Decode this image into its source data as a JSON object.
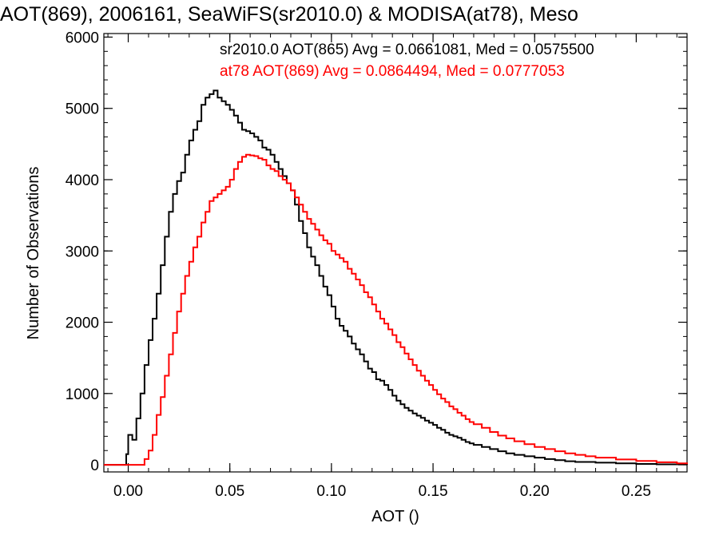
{
  "chart_data": {
    "type": "histogram",
    "title": "AOT(869), 2006161, SeaWiFS(sr2010.0) & MODISA(at78), Meso",
    "xlabel": "AOT ()",
    "ylabel": "Number of Observations",
    "xlim": [
      -0.012,
      0.275
    ],
    "ylim": [
      -100,
      6050
    ],
    "xticks": [
      0.0,
      0.05,
      0.1,
      0.15,
      0.2,
      0.25
    ],
    "xtick_labels": [
      "0.00",
      "0.05",
      "0.10",
      "0.15",
      "0.20",
      "0.25"
    ],
    "yticks": [
      0,
      1000,
      2000,
      3000,
      4000,
      5000,
      6000
    ],
    "ytick_labels": [
      "0",
      "1000",
      "2000",
      "3000",
      "4000",
      "5000",
      "6000"
    ],
    "series": [
      {
        "name": "sr2010.0 AOT(865)",
        "color": "#000000",
        "points": [
          [
            -0.012,
            0
          ],
          [
            -0.002,
            0
          ],
          [
            -0.001,
            150
          ],
          [
            0.0,
            420
          ],
          [
            0.002,
            350
          ],
          [
            0.004,
            650
          ],
          [
            0.006,
            1000
          ],
          [
            0.008,
            1400
          ],
          [
            0.01,
            1750
          ],
          [
            0.012,
            2050
          ],
          [
            0.014,
            2400
          ],
          [
            0.016,
            2800
          ],
          [
            0.018,
            3200
          ],
          [
            0.02,
            3550
          ],
          [
            0.022,
            3800
          ],
          [
            0.024,
            3980
          ],
          [
            0.026,
            4100
          ],
          [
            0.028,
            4350
          ],
          [
            0.03,
            4550
          ],
          [
            0.032,
            4700
          ],
          [
            0.034,
            4820
          ],
          [
            0.036,
            5050
          ],
          [
            0.038,
            5150
          ],
          [
            0.04,
            5200
          ],
          [
            0.042,
            5250
          ],
          [
            0.044,
            5150
          ],
          [
            0.046,
            5100
          ],
          [
            0.048,
            5050
          ],
          [
            0.05,
            4980
          ],
          [
            0.052,
            4900
          ],
          [
            0.054,
            4800
          ],
          [
            0.056,
            4700
          ],
          [
            0.058,
            4680
          ],
          [
            0.06,
            4650
          ],
          [
            0.062,
            4600
          ],
          [
            0.064,
            4550
          ],
          [
            0.066,
            4450
          ],
          [
            0.068,
            4420
          ],
          [
            0.07,
            4350
          ],
          [
            0.072,
            4250
          ],
          [
            0.074,
            4150
          ],
          [
            0.076,
            4050
          ],
          [
            0.078,
            3950
          ],
          [
            0.08,
            3850
          ],
          [
            0.082,
            3650
          ],
          [
            0.084,
            3420
          ],
          [
            0.086,
            3250
          ],
          [
            0.088,
            3050
          ],
          [
            0.09,
            2920
          ],
          [
            0.092,
            2800
          ],
          [
            0.094,
            2650
          ],
          [
            0.096,
            2500
          ],
          [
            0.098,
            2380
          ],
          [
            0.1,
            2220
          ],
          [
            0.102,
            2050
          ],
          [
            0.104,
            1950
          ],
          [
            0.106,
            1880
          ],
          [
            0.108,
            1800
          ],
          [
            0.11,
            1700
          ],
          [
            0.112,
            1620
          ],
          [
            0.114,
            1550
          ],
          [
            0.116,
            1450
          ],
          [
            0.118,
            1350
          ],
          [
            0.12,
            1300
          ],
          [
            0.122,
            1200
          ],
          [
            0.124,
            1180
          ],
          [
            0.126,
            1120
          ],
          [
            0.128,
            1050
          ],
          [
            0.13,
            970
          ],
          [
            0.132,
            900
          ],
          [
            0.134,
            850
          ],
          [
            0.136,
            800
          ],
          [
            0.138,
            760
          ],
          [
            0.14,
            720
          ],
          [
            0.142,
            690
          ],
          [
            0.144,
            660
          ],
          [
            0.146,
            620
          ],
          [
            0.148,
            590
          ],
          [
            0.15,
            560
          ],
          [
            0.152,
            520
          ],
          [
            0.154,
            490
          ],
          [
            0.156,
            450
          ],
          [
            0.158,
            420
          ],
          [
            0.16,
            400
          ],
          [
            0.162,
            380
          ],
          [
            0.164,
            350
          ],
          [
            0.166,
            320
          ],
          [
            0.168,
            300
          ],
          [
            0.17,
            280
          ],
          [
            0.174,
            250
          ],
          [
            0.178,
            220
          ],
          [
            0.182,
            190
          ],
          [
            0.186,
            160
          ],
          [
            0.19,
            140
          ],
          [
            0.195,
            120
          ],
          [
            0.2,
            100
          ],
          [
            0.205,
            80
          ],
          [
            0.21,
            65
          ],
          [
            0.215,
            50
          ],
          [
            0.22,
            40
          ],
          [
            0.23,
            30
          ],
          [
            0.24,
            20
          ],
          [
            0.25,
            12
          ],
          [
            0.26,
            6
          ],
          [
            0.275,
            0
          ]
        ]
      },
      {
        "name": "at78 AOT(869)",
        "color": "#ff0000",
        "points": [
          [
            -0.012,
            0
          ],
          [
            0.007,
            0
          ],
          [
            0.008,
            80
          ],
          [
            0.01,
            200
          ],
          [
            0.012,
            420
          ],
          [
            0.014,
            700
          ],
          [
            0.016,
            950
          ],
          [
            0.018,
            1250
          ],
          [
            0.02,
            1550
          ],
          [
            0.022,
            1850
          ],
          [
            0.024,
            2150
          ],
          [
            0.026,
            2400
          ],
          [
            0.028,
            2650
          ],
          [
            0.03,
            2850
          ],
          [
            0.032,
            3050
          ],
          [
            0.034,
            3200
          ],
          [
            0.036,
            3400
          ],
          [
            0.038,
            3550
          ],
          [
            0.04,
            3700
          ],
          [
            0.042,
            3750
          ],
          [
            0.044,
            3800
          ],
          [
            0.046,
            3850
          ],
          [
            0.048,
            3900
          ],
          [
            0.05,
            4000
          ],
          [
            0.052,
            4150
          ],
          [
            0.054,
            4250
          ],
          [
            0.056,
            4320
          ],
          [
            0.058,
            4350
          ],
          [
            0.06,
            4340
          ],
          [
            0.062,
            4330
          ],
          [
            0.064,
            4300
          ],
          [
            0.066,
            4280
          ],
          [
            0.068,
            4200
          ],
          [
            0.07,
            4150
          ],
          [
            0.072,
            4120
          ],
          [
            0.074,
            4050
          ],
          [
            0.076,
            4000
          ],
          [
            0.078,
            3950
          ],
          [
            0.08,
            3850
          ],
          [
            0.082,
            3750
          ],
          [
            0.084,
            3650
          ],
          [
            0.086,
            3550
          ],
          [
            0.088,
            3450
          ],
          [
            0.09,
            3380
          ],
          [
            0.092,
            3300
          ],
          [
            0.094,
            3220
          ],
          [
            0.096,
            3150
          ],
          [
            0.098,
            3100
          ],
          [
            0.1,
            3000
          ],
          [
            0.102,
            2950
          ],
          [
            0.104,
            2900
          ],
          [
            0.106,
            2850
          ],
          [
            0.108,
            2750
          ],
          [
            0.11,
            2680
          ],
          [
            0.112,
            2600
          ],
          [
            0.114,
            2520
          ],
          [
            0.116,
            2420
          ],
          [
            0.118,
            2350
          ],
          [
            0.12,
            2250
          ],
          [
            0.122,
            2150
          ],
          [
            0.124,
            2050
          ],
          [
            0.126,
            1980
          ],
          [
            0.128,
            1900
          ],
          [
            0.13,
            1820
          ],
          [
            0.132,
            1720
          ],
          [
            0.134,
            1650
          ],
          [
            0.136,
            1560
          ],
          [
            0.138,
            1480
          ],
          [
            0.14,
            1400
          ],
          [
            0.142,
            1320
          ],
          [
            0.144,
            1250
          ],
          [
            0.146,
            1180
          ],
          [
            0.148,
            1120
          ],
          [
            0.15,
            1050
          ],
          [
            0.152,
            990
          ],
          [
            0.154,
            930
          ],
          [
            0.156,
            880
          ],
          [
            0.158,
            820
          ],
          [
            0.16,
            780
          ],
          [
            0.162,
            730
          ],
          [
            0.164,
            690
          ],
          [
            0.166,
            640
          ],
          [
            0.168,
            600
          ],
          [
            0.17,
            570
          ],
          [
            0.174,
            520
          ],
          [
            0.178,
            460
          ],
          [
            0.182,
            410
          ],
          [
            0.186,
            370
          ],
          [
            0.19,
            330
          ],
          [
            0.195,
            290
          ],
          [
            0.2,
            250
          ],
          [
            0.205,
            220
          ],
          [
            0.21,
            190
          ],
          [
            0.215,
            160
          ],
          [
            0.22,
            140
          ],
          [
            0.225,
            120
          ],
          [
            0.23,
            100
          ],
          [
            0.24,
            75
          ],
          [
            0.25,
            55
          ],
          [
            0.26,
            35
          ],
          [
            0.27,
            20
          ],
          [
            0.275,
            10
          ]
        ]
      }
    ],
    "annotations": [
      {
        "text": "sr2010.0 AOT(865) Avg = 0.0661081, Med = 0.0575500",
        "color": "#000000"
      },
      {
        "text": "at78 AOT(869) Avg = 0.0864494, Med = 0.0777053",
        "color": "#ff0000"
      }
    ],
    "grid": false
  }
}
